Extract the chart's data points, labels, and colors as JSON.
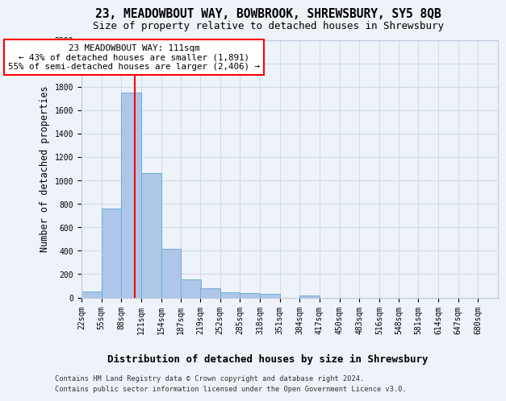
{
  "title1": "23, MEADOWBOUT WAY, BOWBROOK, SHREWSBURY, SY5 8QB",
  "title2": "Size of property relative to detached houses in Shrewsbury",
  "xlabel": "Distribution of detached houses by size in Shrewsbury",
  "ylabel": "Number of detached properties",
  "footer1": "Contains HM Land Registry data © Crown copyright and database right 2024.",
  "footer2": "Contains public sector information licensed under the Open Government Licence v3.0.",
  "annotation_line1": "23 MEADOWBOUT WAY: 111sqm",
  "annotation_line2": "← 43% of detached houses are smaller (1,891)",
  "annotation_line3": "55% of semi-detached houses are larger (2,406) →",
  "property_size": 111,
  "bin_edges": [
    22,
    55,
    88,
    121,
    154,
    187,
    219,
    252,
    285,
    318,
    351,
    384,
    417,
    450,
    483,
    516,
    548,
    581,
    614,
    647,
    680
  ],
  "counts": [
    55,
    760,
    1750,
    1065,
    415,
    155,
    80,
    48,
    40,
    28,
    0,
    18,
    0,
    0,
    0,
    0,
    0,
    0,
    0,
    0
  ],
  "bar_color": "#aec6e8",
  "bar_edge_color": "#6aafd6",
  "grid_color": "#d0dcea",
  "vline_color": "red",
  "background_color": "#eef2f9",
  "ylim": [
    0,
    2200
  ],
  "yticks": [
    0,
    200,
    400,
    600,
    800,
    1000,
    1200,
    1400,
    1600,
    1800,
    2000,
    2200
  ],
  "title1_fontsize": 10.5,
  "title2_fontsize": 9,
  "ylabel_fontsize": 8.5,
  "tick_fontsize": 7,
  "xlabel_fontsize": 9,
  "footer_fontsize": 6.2,
  "annot_fontsize": 7.8
}
